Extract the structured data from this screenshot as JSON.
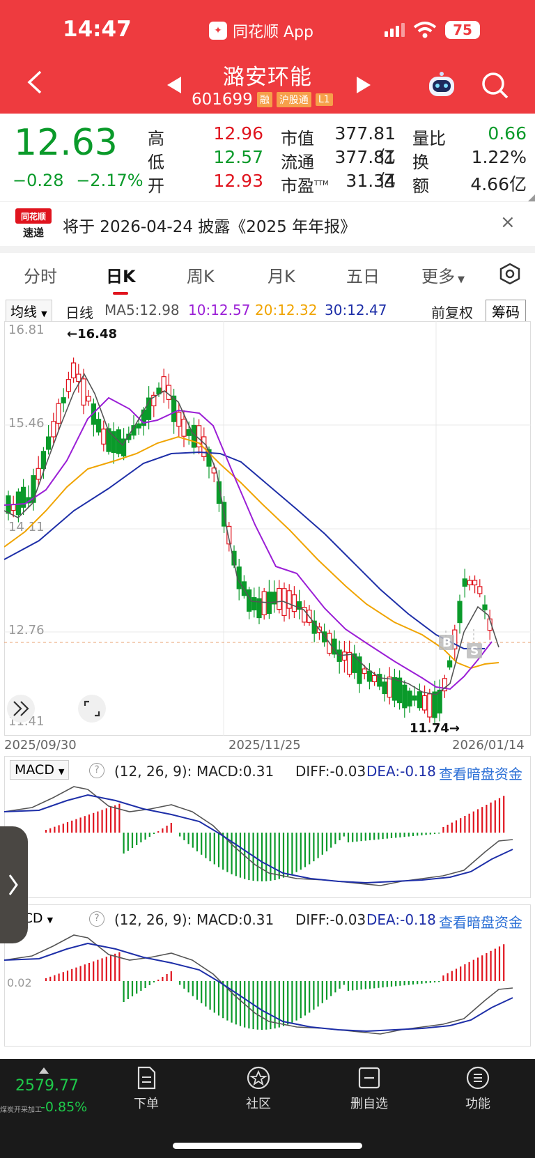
{
  "status": {
    "time": "14:47",
    "app_name": "同花顺 App",
    "battery": "75"
  },
  "stock": {
    "name": "潞安环能",
    "code": "601699",
    "tags": [
      "融",
      "沪股通",
      "L1"
    ]
  },
  "quote": {
    "price": "12.63",
    "change": "−0.28",
    "change_pct": "−2.17%",
    "high_label": "高",
    "high": "12.96",
    "low_label": "低",
    "low": "12.57",
    "open_label": "开",
    "open": "12.93",
    "mktcap_label": "市值",
    "mktcap": "377.81亿",
    "float_label": "流通",
    "float": "377.81亿",
    "pe_label": "市盈",
    "pe_sup": "TTM",
    "pe": "31.34",
    "vol_ratio_label": "量比",
    "vol_ratio": "0.66",
    "turnover_label": "换",
    "turnover": "1.22%",
    "amount_label": "额",
    "amount": "4.66亿"
  },
  "notice": {
    "logo_top": "同花顺",
    "logo_bottom": "速递",
    "text": "将于 2026-04-24 披露《2025 年年报》",
    "close": "×"
  },
  "tabs": [
    "分时",
    "日K",
    "周K",
    "月K",
    "五日",
    "更多"
  ],
  "ma_bar": {
    "selector": "均线",
    "period": "日线",
    "ma5": "MA5:12.98",
    "ma10": "10:12.57",
    "ma20": "20:12.32",
    "ma30": "30:12.47",
    "adjust": "前复权",
    "chips": "筹码"
  },
  "kchart": {
    "y_labels": [
      "16.81",
      "15.46",
      "14.11",
      "12.76",
      "11.41"
    ],
    "max_label": "←16.48",
    "min_label": "11.74→",
    "x_labels": [
      "2025/09/30",
      "2025/11/25",
      "2026/01/14"
    ],
    "buy_marker": "B",
    "sell_marker": "S"
  },
  "macd1": {
    "selector": "MACD",
    "params": "(12, 26, 9):",
    "macd": "MACD:0.31",
    "diff": "DIFF:-0.03",
    "dea": "DEA:-0.18",
    "link": "查看暗盘资金"
  },
  "macd2": {
    "selector": "ACD",
    "params": "(12, 26, 9):",
    "macd": "MACD:0.31",
    "diff": "DIFF:-0.03",
    "dea": "DEA:-0.18",
    "link": "查看暗盘资金",
    "axis_label": "0.02"
  },
  "bottom": {
    "index_value": "2579.77",
    "index_name": "煤炭开采加工",
    "index_pct": "-0.85%",
    "nav": [
      "下单",
      "社区",
      "删自选",
      "功能"
    ]
  },
  "colors": {
    "up": "#e0141e",
    "down": "#0a9a2a",
    "header": "#ee3b3f",
    "ma5": "#555555",
    "ma10": "#9b1fd6",
    "ma20": "#f0a400",
    "ma30": "#1e2fa8"
  }
}
